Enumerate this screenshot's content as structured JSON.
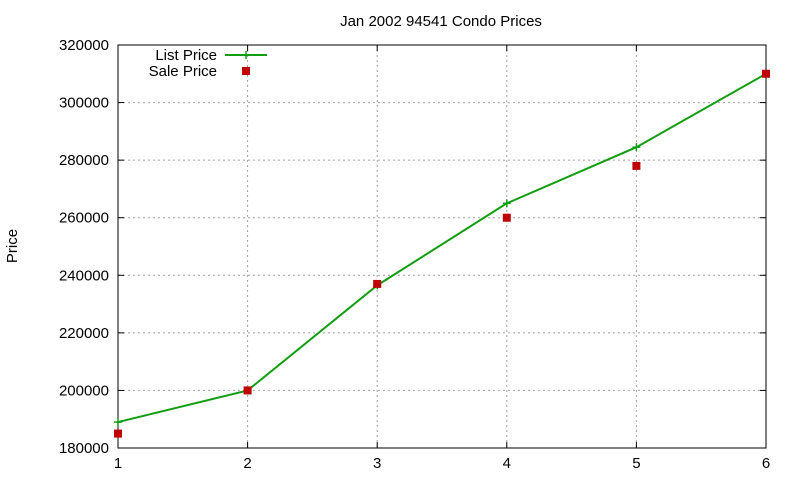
{
  "chart_data": {
    "type": "line",
    "title": "Jan 2002 94541 Condo Prices",
    "xlabel": "",
    "ylabel": "Price",
    "x": [
      1,
      2,
      3,
      4,
      5,
      6
    ],
    "xlim": [
      1,
      6
    ],
    "ylim": [
      180000,
      320000
    ],
    "xticks": [
      "1",
      "2",
      "3",
      "4",
      "5",
      "6"
    ],
    "yticks": [
      "180000",
      "200000",
      "220000",
      "240000",
      "260000",
      "280000",
      "300000",
      "320000"
    ],
    "grid": true,
    "legend_position": "top-left",
    "series": [
      {
        "name": "List Price",
        "style": "line-points",
        "color": "#109e10",
        "values": [
          189000,
          200000,
          236500,
          265000,
          284500,
          310000
        ]
      },
      {
        "name": "Sale Price",
        "style": "points",
        "color": "#c00000",
        "values": [
          185000,
          200000,
          237000,
          260000,
          278000,
          310000
        ]
      }
    ]
  }
}
